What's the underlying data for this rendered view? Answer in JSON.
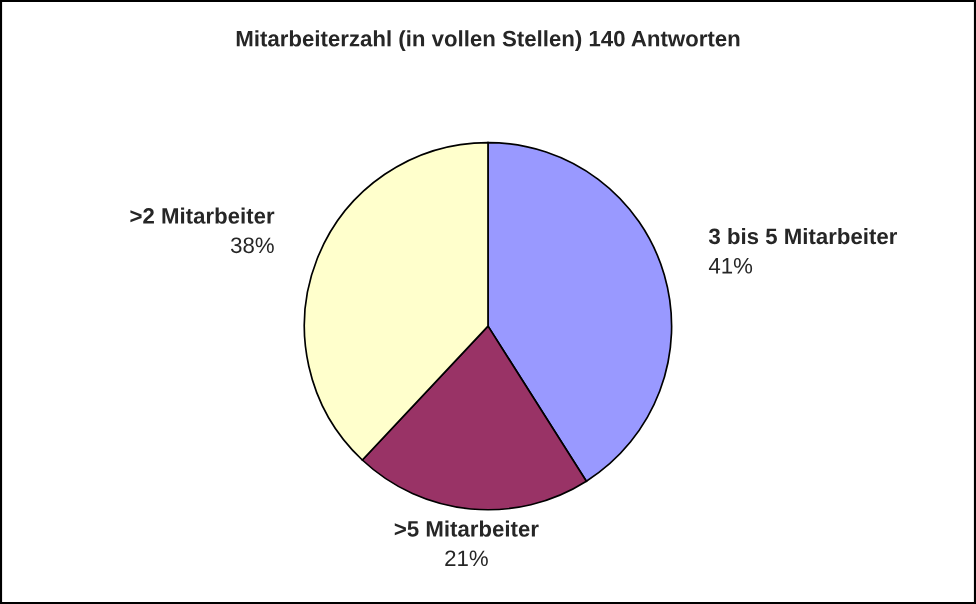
{
  "chart_data": {
    "type": "pie",
    "title": "Mitarbeiterzahl (in vollen Stellen) 140 Antworten",
    "categories": [
      "3 bis 5 Mitarbeiter",
      ">5 Mitarbeiter",
      ">2 Mitarbeiter"
    ],
    "values": [
      41,
      21,
      38
    ],
    "value_labels": [
      "41%",
      "21%",
      "38%"
    ],
    "colors": [
      "#9999ff",
      "#993366",
      "#ffffcc"
    ],
    "legend": false
  }
}
